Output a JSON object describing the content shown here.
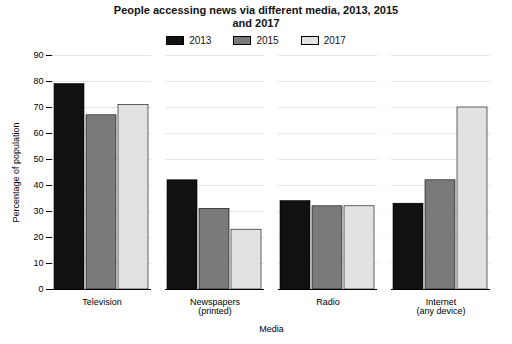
{
  "chart_data": {
    "type": "bar",
    "title": "People accessing news via different media, 2013, 2015 and 2017",
    "x_label": "Media",
    "y_label": "Percentage of population",
    "categories": [
      "Television",
      "Newspapers (printed)",
      "Radio",
      "Internet (any device)"
    ],
    "series": [
      {
        "name": "2013",
        "color": "#111111",
        "values": [
          79,
          42,
          34,
          33
        ]
      },
      {
        "name": "2015",
        "color": "#7a7a7a",
        "values": [
          67,
          31,
          32,
          42
        ]
      },
      {
        "name": "2017",
        "color": "#e2e2e2",
        "values": [
          71,
          23,
          32,
          70
        ]
      }
    ],
    "ylim": [
      0,
      90
    ],
    "yticks": [
      0,
      10,
      20,
      30,
      40,
      50,
      60,
      70,
      80,
      90
    ],
    "grid": true,
    "legend": "top"
  }
}
